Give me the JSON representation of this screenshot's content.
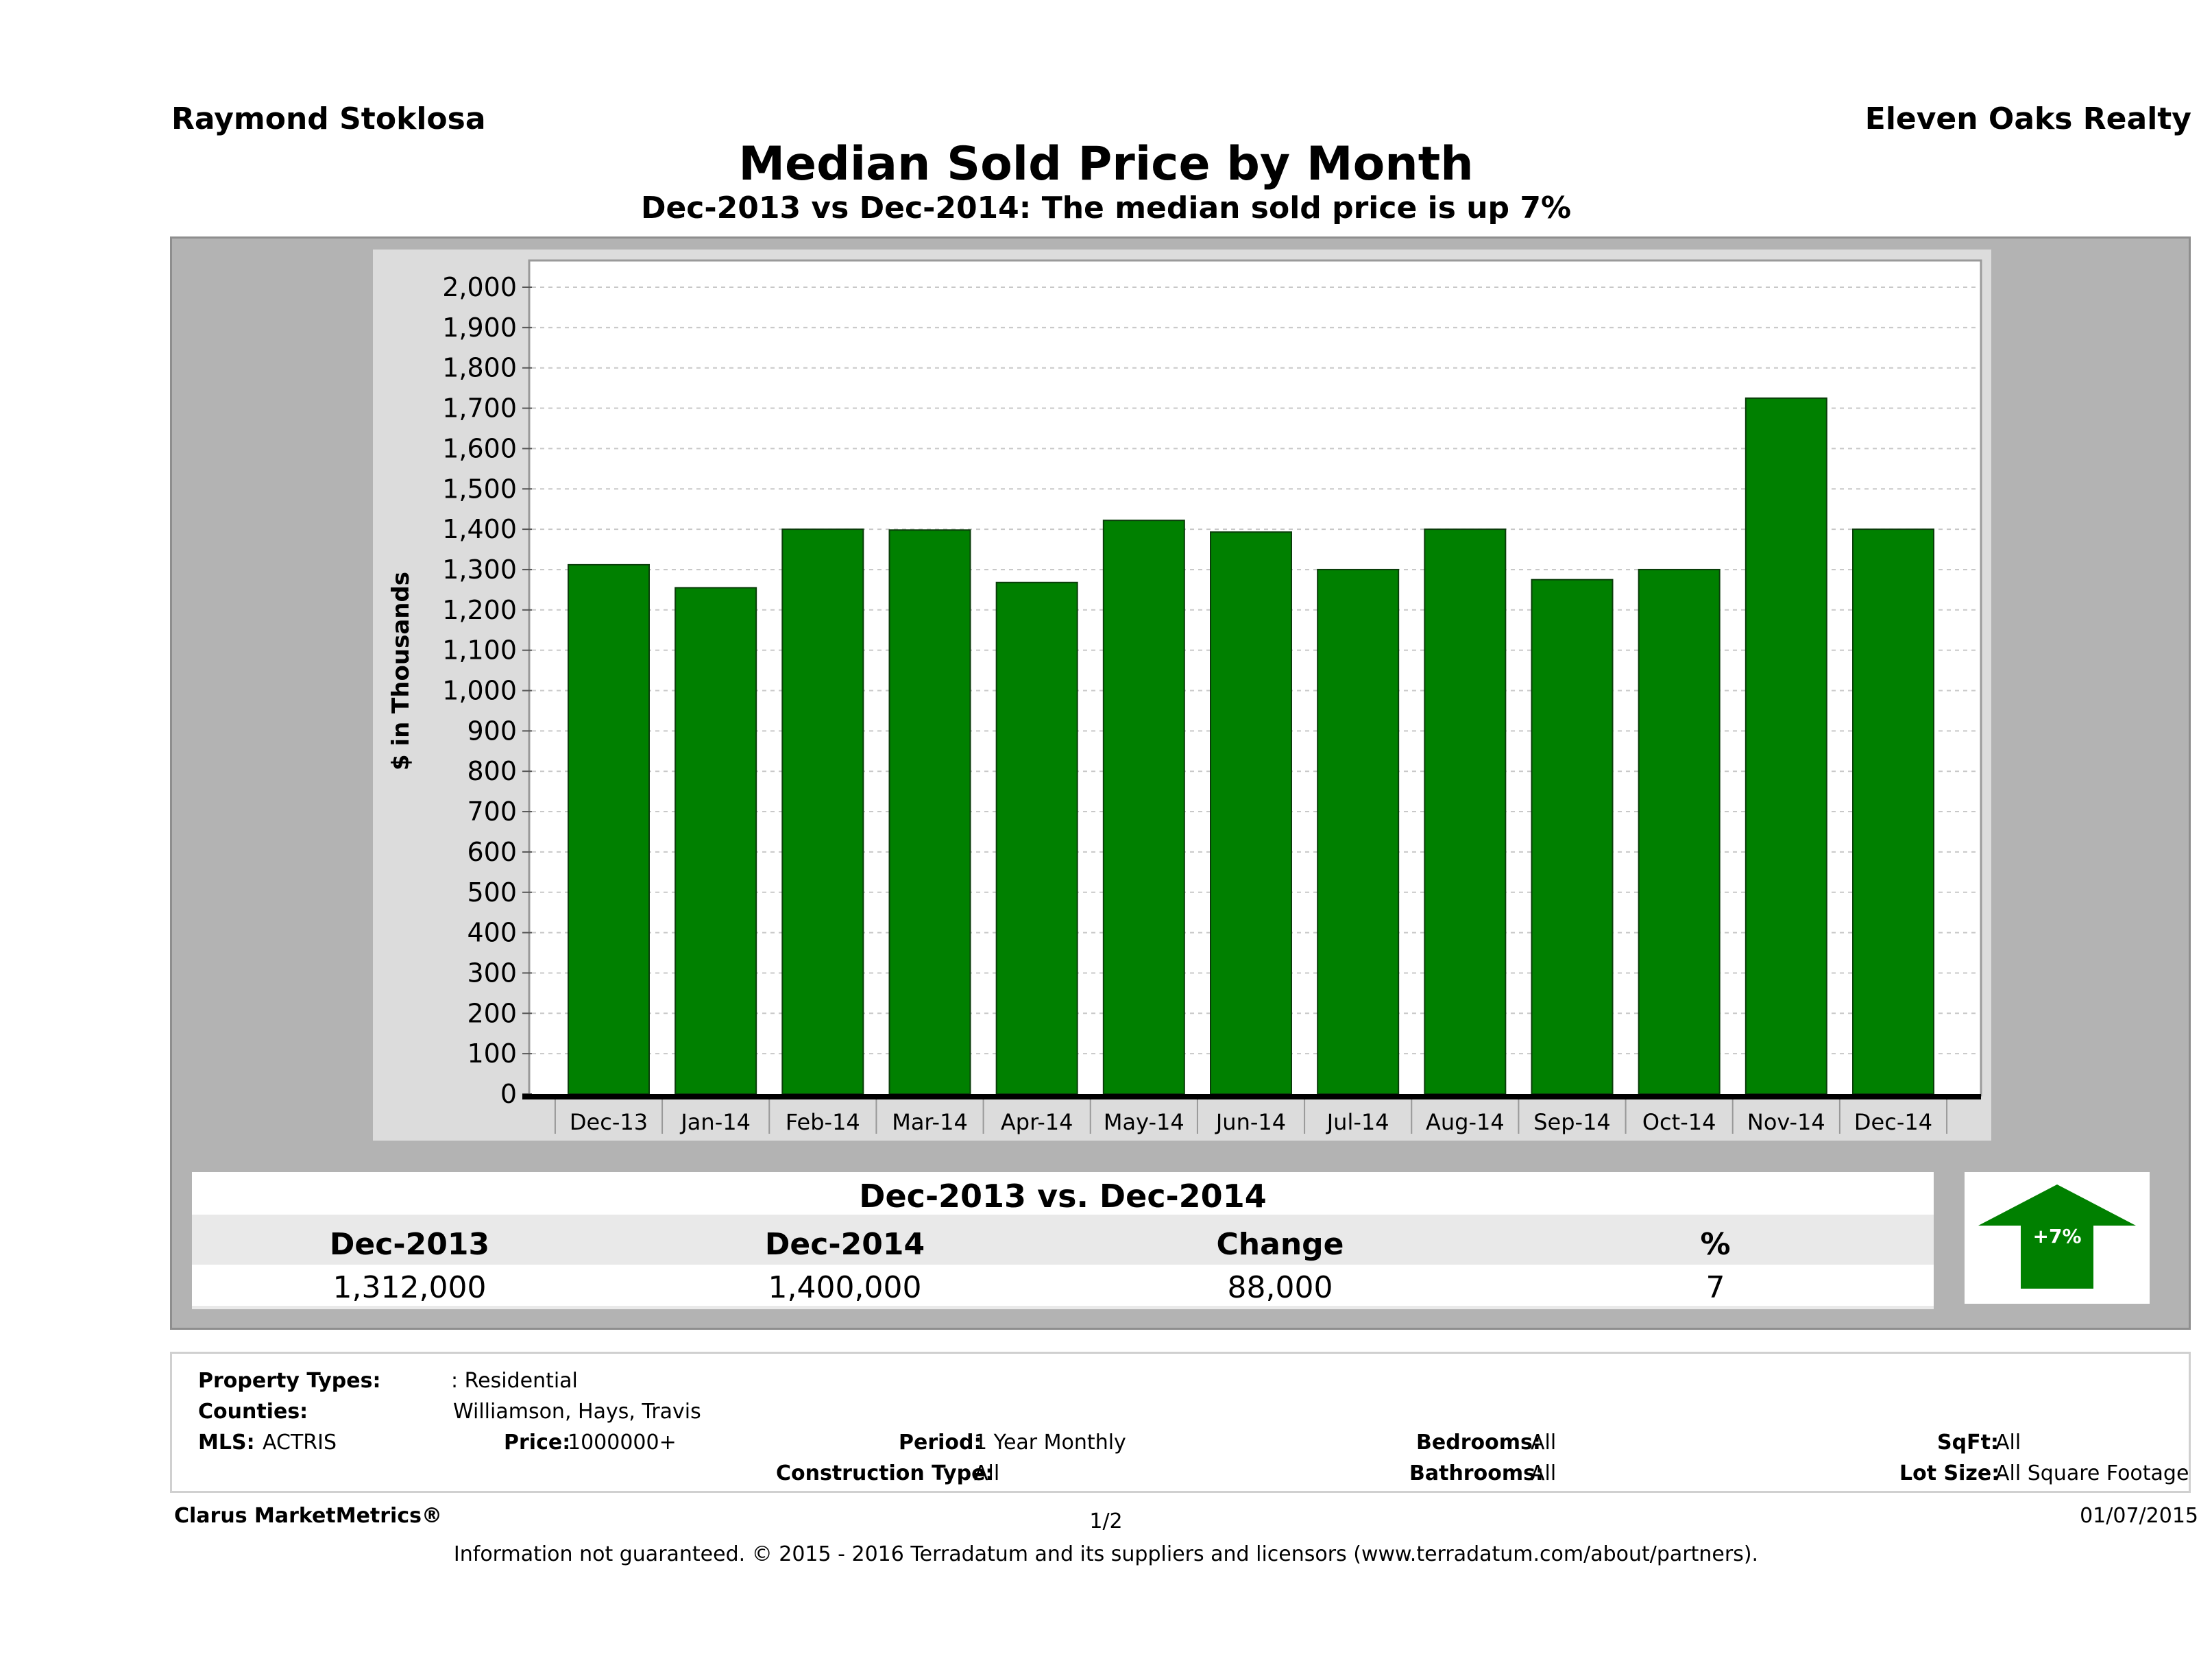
{
  "header": {
    "agent": "Raymond Stoklosa",
    "brokerage": "Eleven Oaks Realty",
    "title": "Median Sold Price by Month",
    "subtitle": "Dec-2013 vs Dec-2014: The median sold price is up 7%"
  },
  "chart_data": {
    "type": "bar",
    "title": "Median Sold Price by Month",
    "ylabel": "$ in Thousands",
    "xlabel": "",
    "ylim": [
      0,
      2000
    ],
    "ytick_step": 100,
    "grid": true,
    "categories": [
      "Dec-13",
      "Jan-14",
      "Feb-14",
      "Mar-14",
      "Apr-14",
      "May-14",
      "Jun-14",
      "Jul-14",
      "Aug-14",
      "Sep-14",
      "Oct-14",
      "Nov-14",
      "Dec-14"
    ],
    "values": [
      1312,
      1255,
      1400,
      1398,
      1268,
      1422,
      1393,
      1300,
      1400,
      1275,
      1300,
      1725,
      1400
    ],
    "bar_color": "#008000"
  },
  "summary": {
    "title": "Dec-2013 vs. Dec-2014",
    "headers": [
      "Dec-2013",
      "Dec-2014",
      "Change",
      "%"
    ],
    "values": [
      "1,312,000",
      "1,400,000",
      "88,000",
      "7"
    ],
    "badge": "+7%",
    "badge_color": "#008000"
  },
  "criteria": {
    "property_types_label": "Property Types:",
    "property_types": ": Residential",
    "counties_label": "Counties:",
    "counties": "Williamson, Hays, Travis",
    "mls_label": "MLS:",
    "mls": "ACTRIS",
    "price_label": "Price:",
    "price": "1000000+",
    "period_label": "Period:",
    "period": "1 Year Monthly",
    "construction_label": "Construction Type:",
    "construction": "All",
    "bedrooms_label": "Bedrooms:",
    "bedrooms": "All",
    "bathrooms_label": "Bathrooms:",
    "bathrooms": "All",
    "sqft_label": "SqFt:",
    "sqft": "All",
    "lot_label": "Lot Size:",
    "lot": "All Square Footage"
  },
  "footer": {
    "brand": "Clarus MarketMetrics®",
    "page": "1/2",
    "date": "01/07/2015",
    "disclaimer": "Information not guaranteed. © 2015 - 2016 Terradatum and its suppliers and licensors (www.terradatum.com/about/partners)."
  }
}
